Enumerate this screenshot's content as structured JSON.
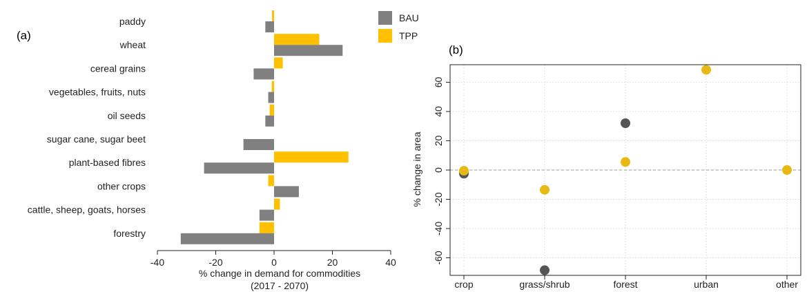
{
  "panels": {
    "a": "(a)",
    "b": "(b)"
  },
  "legend": [
    {
      "name": "BAU",
      "color": "#808080"
    },
    {
      "name": "TPP",
      "color": "#FFC000"
    }
  ],
  "chart_data": [
    {
      "type": "bar",
      "orientation": "horizontal",
      "panel": "(a)",
      "categories": [
        "paddy",
        "wheat",
        "cereal grains",
        "vegetables, fruits, nuts",
        "oil seeds",
        "sugar cane, sugar beet",
        "plant-based fibres",
        "other crops",
        "cattle, sheep, goats, horses",
        "forestry"
      ],
      "series": [
        {
          "name": "TPP",
          "color": "#FFC000",
          "values": [
            -0.7,
            15.5,
            3,
            -0.8,
            -1.5,
            0,
            25.5,
            -2,
            2,
            -5
          ]
        },
        {
          "name": "BAU",
          "color": "#808080",
          "values": [
            -3,
            23.5,
            -7,
            -2,
            -3,
            -10.5,
            -24,
            8.5,
            -5,
            -32
          ]
        }
      ],
      "xlabel": "% change in demand for commodities",
      "xlabel_line2": "(2017 - 2070)",
      "xlim": [
        -40,
        40
      ],
      "xticks": [
        -40,
        -20,
        0,
        20,
        40
      ],
      "legend_position": "top-right"
    },
    {
      "type": "scatter",
      "panel": "(b)",
      "categories": [
        "crop",
        "grass/shrub",
        "forest",
        "urban",
        "other"
      ],
      "series": [
        {
          "name": "BAU",
          "color": "#555555",
          "values": [
            -2.5,
            -68.5,
            32,
            null,
            null
          ]
        },
        {
          "name": "TPP",
          "color": "#E8B915",
          "values": [
            -0.5,
            -13.5,
            5.5,
            68.5,
            0
          ]
        }
      ],
      "ylabel": "% change in area",
      "ylim": [
        -72,
        72
      ],
      "yticks": [
        -60,
        -40,
        -20,
        0,
        20,
        40,
        60
      ],
      "grid": true,
      "reference_line": 0
    }
  ]
}
